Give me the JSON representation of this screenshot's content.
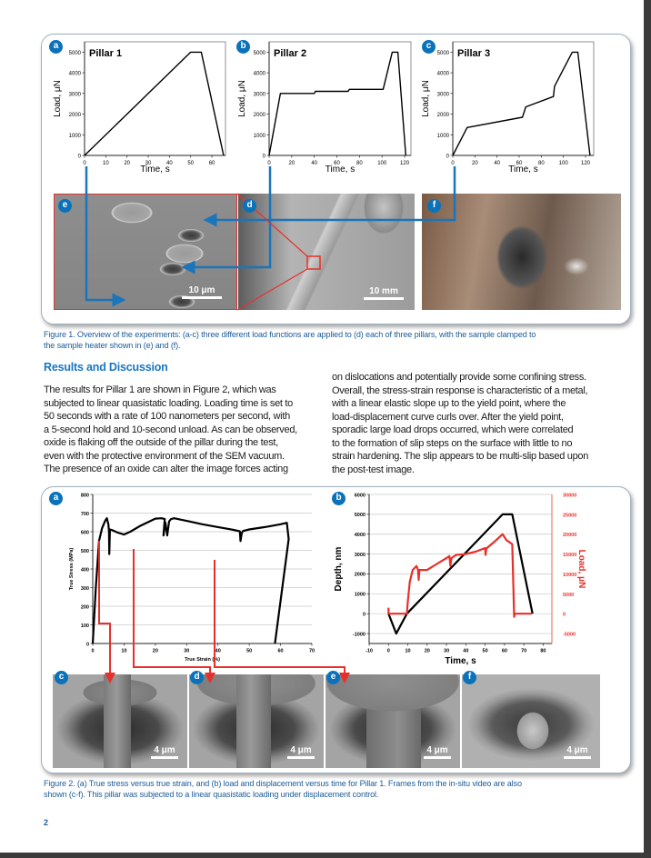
{
  "colors": {
    "accent_blue": "#0b72b9",
    "connector_blue": "#1a75bb",
    "connector_red": "#e8302a",
    "caption_blue": "#1d5c9a"
  },
  "figure1": {
    "badges": {
      "a": "a",
      "b": "b",
      "c": "c",
      "d": "d",
      "e": "e",
      "f": "f"
    },
    "images": {
      "e": {
        "scale_bar": "10 μm"
      },
      "d": {
        "scale_bar": "10 mm"
      },
      "f": {}
    },
    "caption": [
      "Figure 1. Overview of the experiments: (a-c) three different load functions are applied to (d) each of three pillars, with the sample clamped to",
      "the sample heater shown in (e) and (f)."
    ]
  },
  "section": {
    "heading": "Results and Discussion",
    "left_lines": [
      "The results for Pillar 1 are shown in Figure 2, which was",
      "subjected to linear quasistatic loading. Loading time is set to",
      "50 seconds with a rate of 100 nanometers per second, with",
      "a 5-second hold and 10-second unload. As can be observed,",
      "oxide is flaking off the outside of the pillar during the test,",
      "even with the protective environment of the SEM vacuum.",
      "The presence of an oxide can alter the image forces acting"
    ],
    "right_lines": [
      "on dislocations and potentially provide some confining stress.",
      "Overall, the stress-strain response is characteristic of a metal,",
      "with a linear elastic slope up to the yield point, where the",
      "load-displacement curve curls over. After the yield point,",
      "sporadic large load drops occurred, which were correlated",
      "to the formation of slip steps on the surface with little to no",
      "strain hardening. The slip appears to be multi-slip based upon",
      "the post-test image."
    ]
  },
  "figure2": {
    "badges": {
      "a": "a",
      "b": "b",
      "c": "c",
      "d": "d",
      "e": "e",
      "f": "f"
    },
    "frames": [
      {
        "letter": "c",
        "scale_bar": "4 μm"
      },
      {
        "letter": "d",
        "scale_bar": "4 μm"
      },
      {
        "letter": "e",
        "scale_bar": "4 μm"
      },
      {
        "letter": "f",
        "scale_bar": "4 μm"
      }
    ],
    "caption": [
      "Figure 2. (a) True stress versus true strain, and (b) load and displacement versus time for Pillar 1. Frames from the in-situ video are also",
      "shown (c-f). This pillar was subjected to a linear quasistatic loading under displacement control."
    ]
  },
  "page_number": "2",
  "chart_data": [
    {
      "id": "fig1a",
      "type": "line",
      "title": "Pillar 1",
      "xlabel": "Time, s",
      "ylabel": "Load, μN",
      "xlim": [
        0,
        66.4
      ],
      "ylim": [
        0,
        5500
      ],
      "xticks": [
        0,
        10,
        20,
        30,
        40,
        50,
        60
      ],
      "yticks": [
        0,
        1000,
        2000,
        3000,
        4000,
        5000
      ],
      "grid": false,
      "series": [
        {
          "color": "#000000",
          "points": [
            [
              0,
              0
            ],
            [
              50,
              5000
            ],
            [
              55,
              5000
            ],
            [
              65.5,
              0
            ]
          ]
        }
      ]
    },
    {
      "id": "fig1b",
      "type": "line",
      "title": "Pillar 2",
      "xlabel": "Time, s",
      "ylabel": "Load, μN",
      "xlim": [
        0,
        125.6
      ],
      "ylim": [
        0,
        5500
      ],
      "xticks": [
        0,
        20,
        40,
        60,
        80,
        100,
        120
      ],
      "yticks": [
        0,
        1000,
        2000,
        3000,
        4000,
        5000
      ],
      "grid": false,
      "series": [
        {
          "color": "#000000",
          "points": [
            [
              0,
              0
            ],
            [
              10,
              3000
            ],
            [
              40,
              3000
            ],
            [
              41,
              3100
            ],
            [
              70,
              3100
            ],
            [
              71,
              3200
            ],
            [
              101,
              3200
            ],
            [
              109,
              5000
            ],
            [
              114,
              5000
            ],
            [
              121,
              0
            ]
          ]
        }
      ]
    },
    {
      "id": "fig1c",
      "type": "line",
      "title": "Pillar 3",
      "xlabel": "Time, s",
      "ylabel": "Load, μN",
      "xlim": [
        0,
        127.4
      ],
      "ylim": [
        0,
        5500
      ],
      "xticks": [
        0,
        20,
        40,
        60,
        80,
        100,
        120
      ],
      "yticks": [
        0,
        1000,
        2000,
        3000,
        4000,
        5000
      ],
      "grid": false,
      "series": [
        {
          "color": "#000000",
          "points": [
            [
              0,
              0
            ],
            [
              13,
              1350
            ],
            [
              63,
              1850
            ],
            [
              66,
              2350
            ],
            [
              91,
              2850
            ],
            [
              92,
              3350
            ],
            [
              108,
              5000
            ],
            [
              113,
              5000
            ],
            [
              124,
              0
            ]
          ]
        }
      ]
    },
    {
      "id": "fig2a",
      "type": "line",
      "title": "",
      "xlabel": "True Strain (%)",
      "ylabel": "True Stress (MPa)",
      "xlim": [
        0,
        70
      ],
      "ylim": [
        0,
        800
      ],
      "xticks": [
        0,
        10,
        20,
        30,
        40,
        50,
        60,
        70
      ],
      "yticks": [
        0,
        100,
        200,
        300,
        400,
        500,
        600,
        700,
        800
      ],
      "grid": true,
      "series": [
        {
          "color": "#000000",
          "points": [
            [
              0,
              0
            ],
            [
              1,
              300
            ],
            [
              2,
              550
            ],
            [
              3,
              620
            ],
            [
              4,
              660
            ],
            [
              4.5,
              672
            ],
            [
              5,
              640
            ],
            [
              5.2,
              600
            ],
            [
              5.3,
              480
            ],
            [
              5.5,
              612
            ],
            [
              6,
              610
            ],
            [
              8,
              595
            ],
            [
              10,
              585
            ],
            [
              12,
              600
            ],
            [
              15,
              630
            ],
            [
              20,
              670
            ],
            [
              22,
              672
            ],
            [
              23,
              668
            ],
            [
              22.6,
              580
            ],
            [
              23.2,
              650
            ],
            [
              23.8,
              580
            ],
            [
              24.4,
              655
            ],
            [
              25,
              668
            ],
            [
              26,
              672
            ],
            [
              30,
              658
            ],
            [
              35,
              640
            ],
            [
              40,
              625
            ],
            [
              45,
              610
            ],
            [
              47,
              602
            ],
            [
              47.2,
              550
            ],
            [
              47.6,
              592
            ],
            [
              48,
              604
            ],
            [
              50,
              612
            ],
            [
              55,
              625
            ],
            [
              60,
              640
            ],
            [
              62,
              648
            ],
            [
              62.6,
              560
            ],
            [
              58.2,
              0
            ]
          ]
        }
      ]
    },
    {
      "id": "fig2b",
      "type": "line",
      "title": "",
      "xlabel": "Time, s",
      "ylabel": "Depth, nm",
      "y2label": "Load, μN",
      "xlim": [
        -10,
        84.5
      ],
      "ylim": [
        -1500,
        6000
      ],
      "y2lim": [
        -7500,
        30000
      ],
      "xticks": [
        -10,
        0,
        10,
        20,
        30,
        40,
        50,
        60,
        70,
        80
      ],
      "yticks": [
        -1000,
        0,
        1000,
        2000,
        3000,
        4000,
        5000,
        6000
      ],
      "y2ticks": [
        -5000,
        0,
        5000,
        10000,
        15000,
        20000,
        25000,
        30000
      ],
      "grid": true,
      "series": [
        {
          "name": "Depth",
          "axis": "y",
          "color": "#000000",
          "points": [
            [
              0,
              0
            ],
            [
              4,
              -1000
            ],
            [
              9.5,
              0
            ],
            [
              59,
              5000
            ],
            [
              64,
              5000
            ],
            [
              74.5,
              0
            ]
          ]
        },
        {
          "name": "Load",
          "axis": "y2",
          "color": "#e8302a",
          "points": [
            [
              0,
              1500
            ],
            [
              0,
              0
            ],
            [
              9.5,
              0
            ],
            [
              10,
              3000
            ],
            [
              11,
              8000
            ],
            [
              12.5,
              11000
            ],
            [
              14.5,
              12000
            ],
            [
              15.3,
              11000
            ],
            [
              15.6,
              8500
            ],
            [
              16,
              11000
            ],
            [
              20,
              11000
            ],
            [
              25,
              12500
            ],
            [
              30,
              14000
            ],
            [
              31.5,
              14500
            ],
            [
              32,
              12000
            ],
            [
              32.6,
              14000
            ],
            [
              35,
              14800
            ],
            [
              40,
              15000
            ],
            [
              45,
              15600
            ],
            [
              50,
              16500
            ],
            [
              50.2,
              14800
            ],
            [
              50.6,
              16400
            ],
            [
              55,
              18200
            ],
            [
              59,
              20000
            ],
            [
              61,
              18500
            ],
            [
              64,
              17500
            ],
            [
              65,
              -800
            ],
            [
              65.3,
              0
            ],
            [
              74,
              0
            ]
          ]
        }
      ]
    }
  ]
}
